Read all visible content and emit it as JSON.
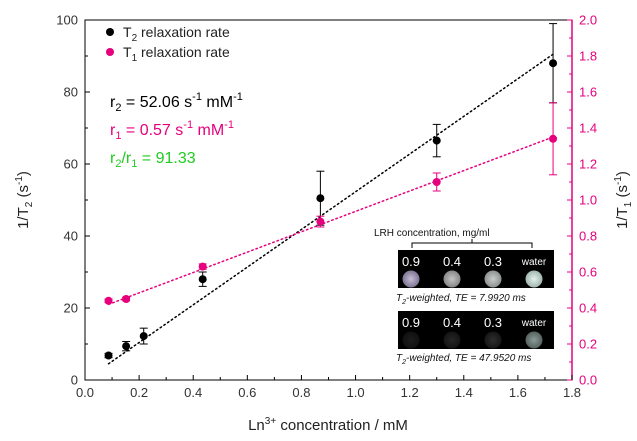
{
  "chart_data": {
    "type": "scatter",
    "xlabel": {
      "main": "Ln",
      "sup": "3+",
      "rest": " concentration / mM"
    },
    "ylabel_left": {
      "pre": "1/T",
      "sub": "2",
      "post": " (s",
      "sup": "-1",
      "end": ")"
    },
    "ylabel_right": {
      "pre": "1/T",
      "sub": "1",
      "post": " (s",
      "sup": "-1",
      "end": ")"
    },
    "xlim": [
      0.0,
      1.8
    ],
    "x_ticks": [
      "0.0",
      "0.2",
      "0.4",
      "0.6",
      "0.8",
      "1.0",
      "1.2",
      "1.4",
      "1.6",
      "1.8"
    ],
    "ylim_left": [
      0,
      100
    ],
    "y_ticks_left": [
      "0",
      "20",
      "40",
      "60",
      "80",
      "100"
    ],
    "ylim_right": [
      0.0,
      2.0
    ],
    "y_ticks_right": [
      "0.0",
      "0.2",
      "0.4",
      "0.6",
      "0.8",
      "1.0",
      "1.2",
      "1.4",
      "1.6",
      "1.8",
      "2.0"
    ],
    "grid": false,
    "legend_position": "top-left",
    "series": [
      {
        "name_pre": "T",
        "name_sub": "2",
        "name_post": " relaxation rate",
        "axis": "left",
        "color": "#000000",
        "x": [
          0.087,
          0.152,
          0.217,
          0.435,
          0.87,
          1.3,
          1.73
        ],
        "y": [
          6.8,
          9.4,
          12.2,
          28.0,
          50.5,
          66.5,
          88.0
        ],
        "err": [
          0.6,
          1.3,
          2.2,
          2.0,
          7.5,
          4.5,
          11.0
        ],
        "fit": {
          "x": [
            0.087,
            1.73
          ],
          "y": [
            4.5,
            90.5
          ]
        }
      },
      {
        "name_pre": "T",
        "name_sub": "1",
        "name_post": " relaxation rate",
        "axis": "right",
        "color": "#e6007e",
        "x": [
          0.087,
          0.152,
          0.435,
          0.87,
          1.3,
          1.73
        ],
        "y": [
          0.44,
          0.45,
          0.63,
          0.88,
          1.1,
          1.34
        ],
        "err": [
          0.01,
          0.01,
          0.015,
          0.03,
          0.05,
          0.2
        ],
        "fit": {
          "x": [
            0.087,
            1.73
          ],
          "y": [
            0.42,
            1.35
          ]
        }
      }
    ],
    "annotations": {
      "r2": {
        "pre": "r",
        "sub": "2",
        "mid": " = 52.06 s",
        "sup1": "-1",
        "mid2": " mM",
        "sup2": "-1",
        "color": "#000000"
      },
      "r1": {
        "pre": "r",
        "sub": "1",
        "mid": " = 0.57 s",
        "sup1": "-1",
        "mid2": " mM",
        "sup2": "-1",
        "color": "#e6007e"
      },
      "ratio": {
        "pre": "r",
        "sub1": "2",
        "slash": "/r",
        "sub2": "1",
        "post": " = 91.33",
        "color": "#22cc22"
      }
    },
    "inset": {
      "header": "LRH concentration, mg/ml",
      "labels": [
        "0.9",
        "0.4",
        "0.3",
        "water"
      ],
      "top_caption": {
        "pre": "T",
        "sub": "2",
        "post": "-weighted, TE = 7.9920 ms"
      },
      "bottom_caption": {
        "pre": "T",
        "sub": "2",
        "post": "-weighted, TE = 47.9520 ms"
      }
    }
  },
  "colors": {
    "pink": "#e6007e",
    "green": "#22cc22",
    "black": "#000000"
  }
}
